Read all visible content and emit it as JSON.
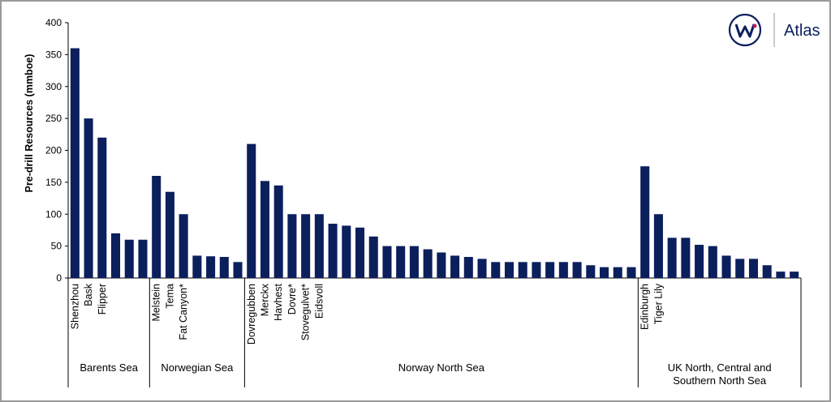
{
  "chart_data": {
    "type": "bar",
    "ylabel": "Pre-drill Resources (mmboe)",
    "logo_text": "Atlas",
    "color": "#0b1f5c",
    "ylim": [
      0,
      400
    ],
    "yticks": [
      0,
      50,
      100,
      150,
      200,
      250,
      300,
      350,
      400
    ],
    "categories": [
      "Shenzhou",
      "Bask",
      "Flipper",
      null,
      null,
      null,
      "Melstein",
      "Tema",
      "Fat Canyon*",
      null,
      null,
      null,
      null,
      "Dovregubben",
      "Merckx",
      "Havhest",
      "Dovre*",
      "Stovegulvet*",
      "Eidsvoll",
      null,
      null,
      null,
      null,
      null,
      null,
      null,
      null,
      null,
      null,
      null,
      null,
      null,
      null,
      null,
      null,
      null,
      null,
      null,
      null,
      null,
      null,
      null,
      "Edinburgh",
      "Tiger Lily",
      null,
      null,
      null,
      null,
      null,
      null,
      null,
      null,
      null,
      null
    ],
    "category_groups": [
      "Barents Sea",
      "Barents Sea",
      "Barents Sea",
      "Barents Sea",
      "Barents Sea",
      "Barents Sea",
      "Norwegian Sea",
      "Norwegian Sea",
      "Norwegian Sea",
      "Norwegian Sea",
      "Norwegian Sea",
      "Norwegian Sea",
      "Norwegian Sea",
      "Norway North Sea",
      "Norway North Sea",
      "Norway North Sea",
      "Norway North Sea",
      "Norway North Sea",
      "Norway North Sea",
      "Norway North Sea",
      "Norway North Sea",
      "Norway North Sea",
      "Norway North Sea",
      "Norway North Sea",
      "Norway North Sea",
      "Norway North Sea",
      "Norway North Sea",
      "Norway North Sea",
      "Norway North Sea",
      "Norway North Sea",
      "Norway North Sea",
      "Norway North Sea",
      "Norway North Sea",
      "Norway North Sea",
      "Norway North Sea",
      "Norway North Sea",
      "Norway North Sea",
      "Norway North Sea",
      "Norway North Sea",
      "Norway North Sea",
      "Norway North Sea",
      "Norway North Sea",
      "UK North, Central and Southern North Sea",
      "UK North, Central and Southern North Sea",
      "UK North, Central and Southern North Sea",
      "UK North, Central and Southern North Sea",
      "UK North, Central and Southern North Sea",
      "UK North, Central and Southern North Sea",
      "UK North, Central and Southern North Sea",
      "UK North, Central and Southern North Sea",
      "UK North, Central and Southern North Sea",
      "UK North, Central and Southern North Sea",
      "UK North, Central and Southern North Sea",
      "UK North, Central and Southern North Sea"
    ],
    "values": [
      360,
      250,
      220,
      70,
      60,
      60,
      160,
      135,
      100,
      35,
      34,
      33,
      25,
      210,
      152,
      145,
      100,
      100,
      100,
      85,
      82,
      79,
      65,
      50,
      50,
      50,
      45,
      40,
      35,
      33,
      30,
      25,
      25,
      25,
      25,
      25,
      25,
      25,
      20,
      17,
      17,
      17,
      175,
      100,
      63,
      63,
      52,
      50,
      35,
      30,
      30,
      20,
      10,
      10
    ]
  }
}
